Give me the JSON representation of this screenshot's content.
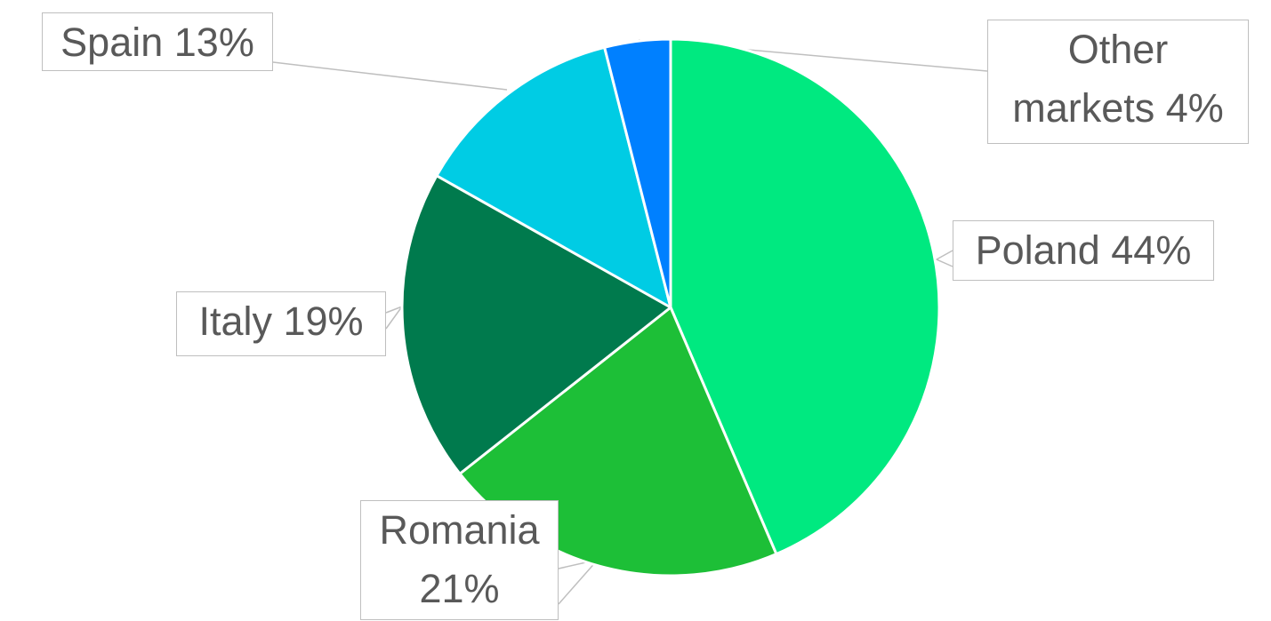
{
  "chart_data": {
    "type": "pie",
    "categories": [
      "Poland",
      "Romania",
      "Italy",
      "Spain",
      "Other markets"
    ],
    "values": [
      44,
      21,
      19,
      13,
      4
    ],
    "value_labels": [
      "44%",
      "21%",
      "19%",
      "13%",
      "4%"
    ],
    "colors": [
      "#00e980",
      "#1dbf37",
      "#007a4d",
      "#00cce4",
      "#0080ff"
    ]
  }
}
